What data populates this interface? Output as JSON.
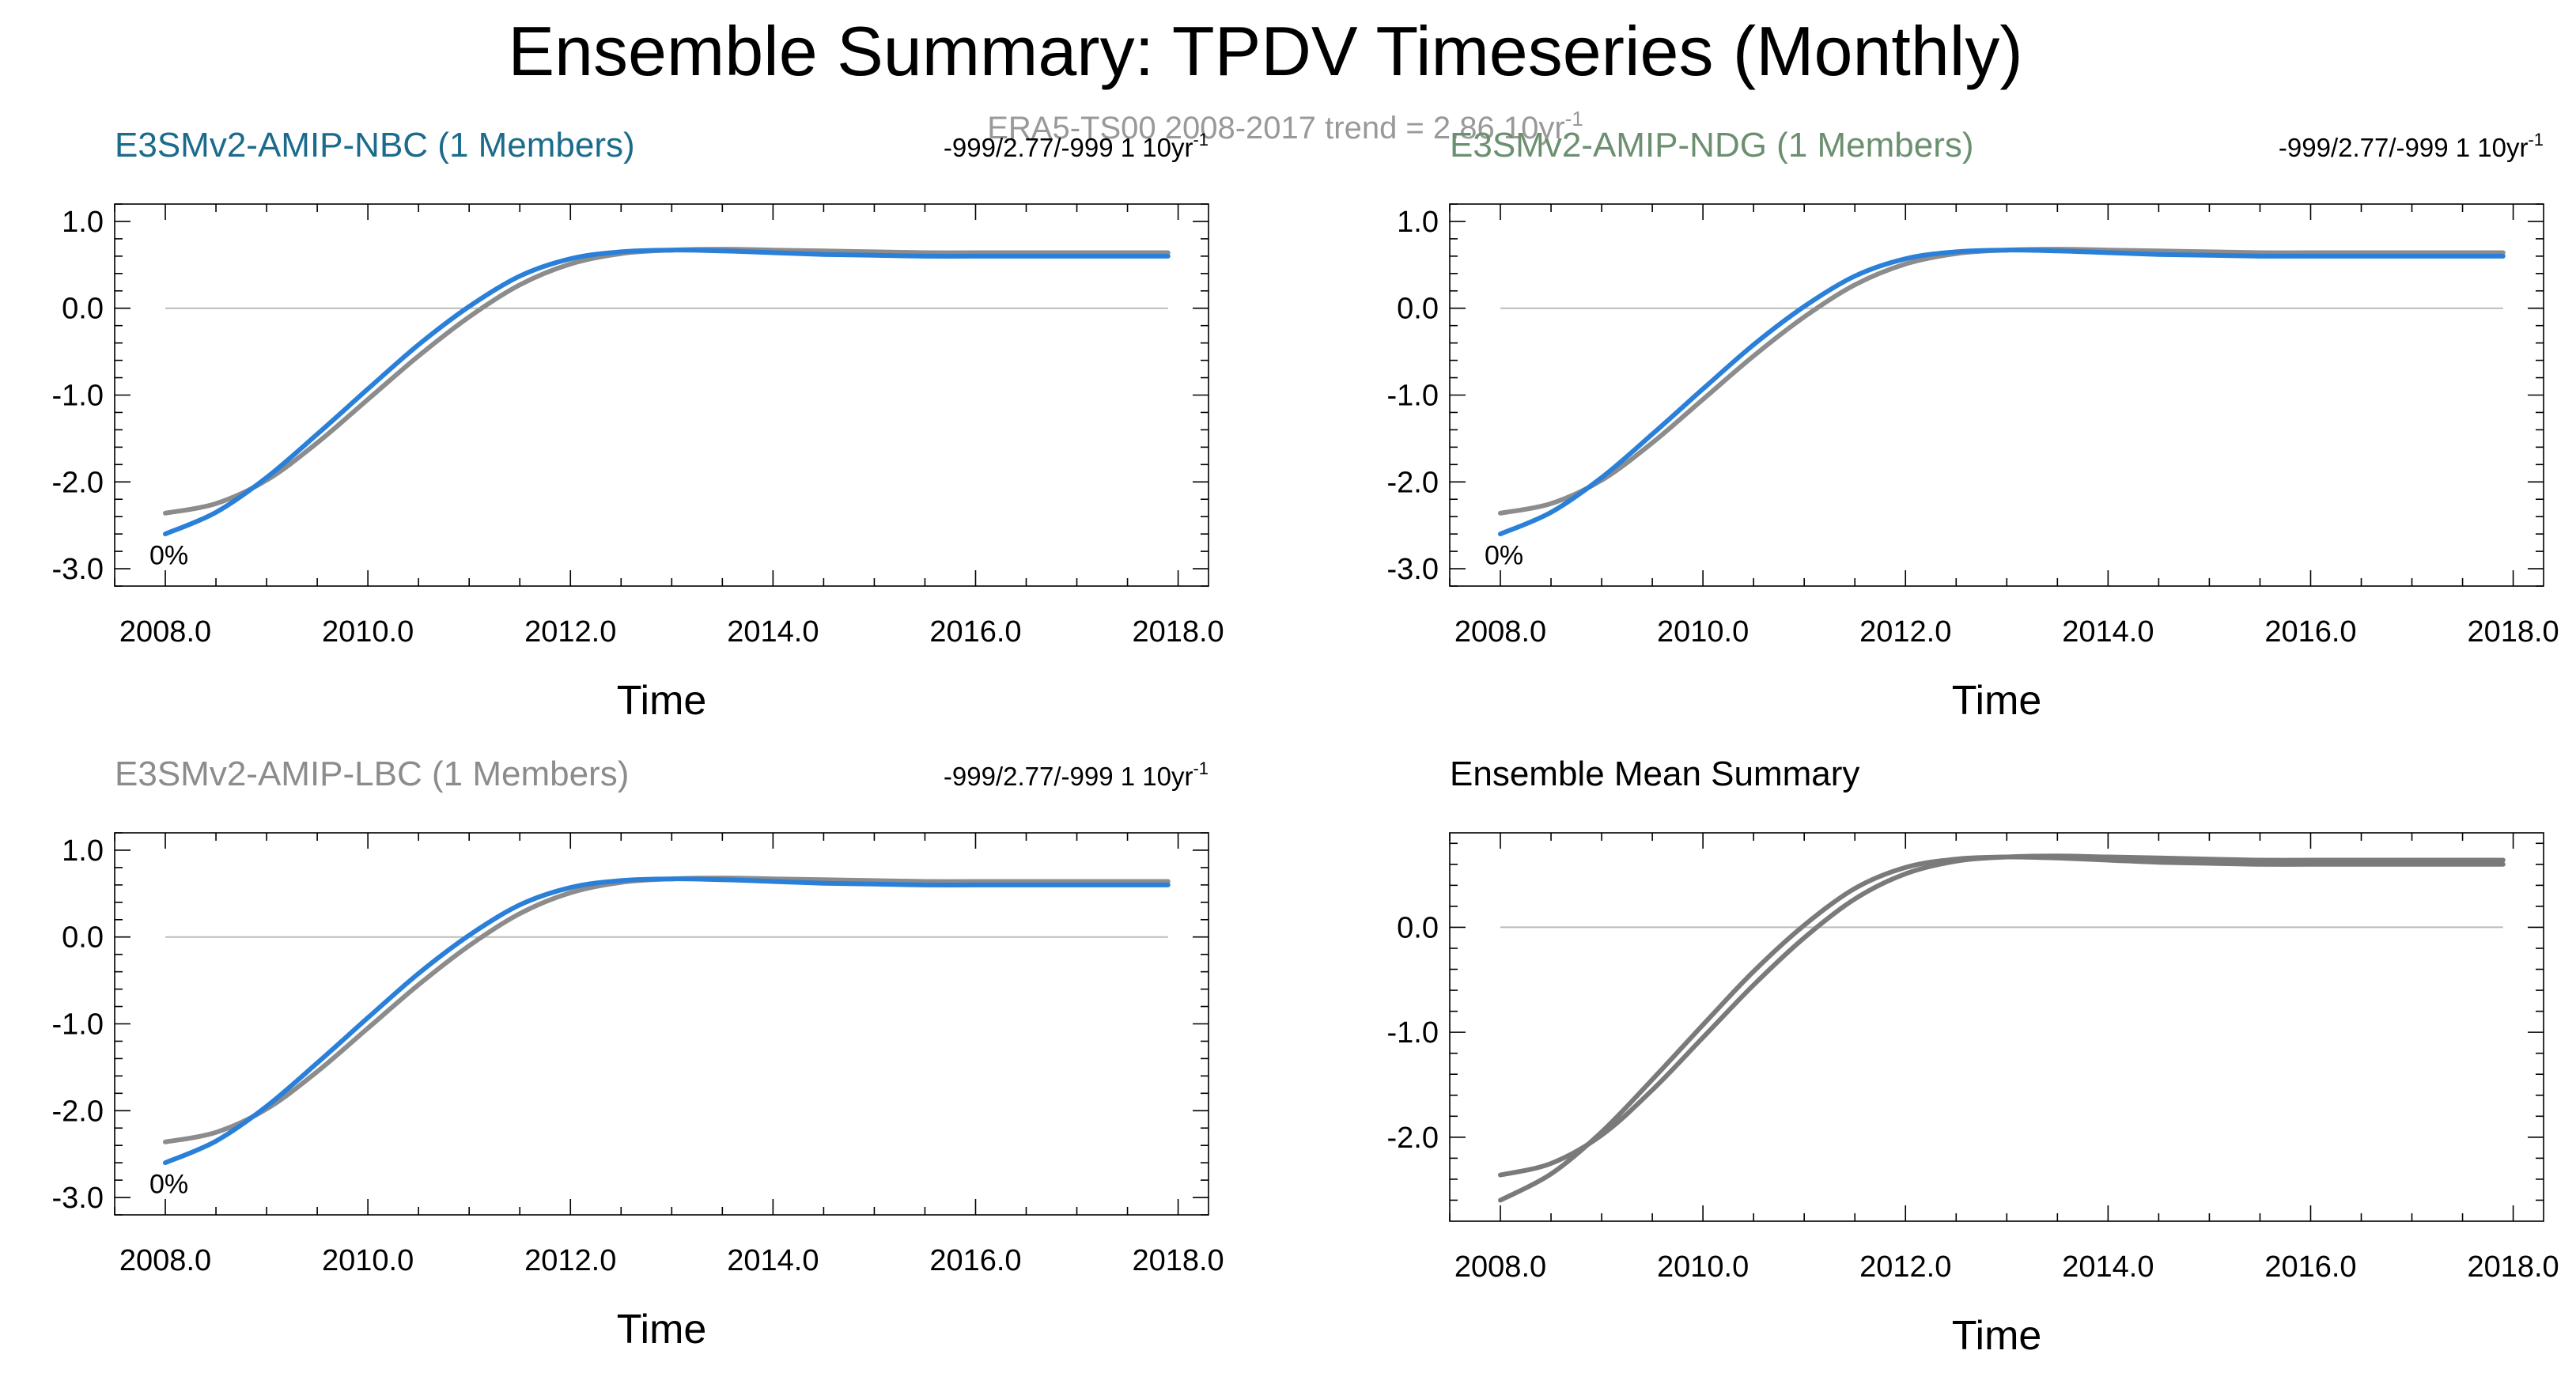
{
  "figure": {
    "title": "Ensemble Summary: TPDV Timeseries (Monthly)",
    "reference_label": "ERA5-TS00 2008-2017 trend = 2.86 10yr",
    "reference_label_superscript": "-1"
  },
  "colors": {
    "nbc_title": "#1b6b8c",
    "ndg_title": "#6b9070",
    "lbc_title": "#8c8c8c",
    "mean_title": "#000000",
    "observation_line": "#8c8c8c",
    "model_line": "#2a80d8",
    "ensemble_line": "#7a7a7a",
    "reference_label": "#999999"
  },
  "chart_data": [
    {
      "type": "line",
      "title": "E3SMv2-AMIP-NBC (1 Members)",
      "title_color_key": "nbc_title",
      "stats": "-999/2.77/-999 1 10yr",
      "stats_superscript": "-1",
      "percent_label": "0%",
      "xlabel": "Time",
      "ylabel": "",
      "xlim": [
        2007.5,
        2018.3
      ],
      "ylim": [
        -3.2,
        1.2
      ],
      "xticks": [
        2008,
        2010,
        2012,
        2014,
        2016,
        2018
      ],
      "xtick_labels": [
        "2008.0",
        "2010.0",
        "2012.0",
        "2014.0",
        "2016.0",
        "2018.0"
      ],
      "yticks": [
        -3,
        -2,
        -1,
        0,
        1
      ],
      "ytick_labels": [
        "-3.0",
        "-2.0",
        "-1.0",
        "0.0",
        "1.0"
      ],
      "zero_line": true,
      "grid": false,
      "x": [
        2008.0,
        2008.5,
        2009.0,
        2009.5,
        2010.0,
        2010.5,
        2011.0,
        2011.5,
        2012.0,
        2012.5,
        2013.0,
        2013.5,
        2014.0,
        2014.5,
        2015.0,
        2015.5,
        2016.0,
        2016.5,
        2017.0,
        2017.5,
        2017.9
      ],
      "series": [
        {
          "color_key": "observation_line",
          "values": [
            -2.36,
            -2.25,
            -1.98,
            -1.55,
            -1.05,
            -0.55,
            -0.1,
            0.27,
            0.51,
            0.63,
            0.67,
            0.68,
            0.67,
            0.66,
            0.65,
            0.64,
            0.64,
            0.64,
            0.64,
            0.64,
            0.64
          ]
        },
        {
          "color_key": "model_line",
          "values": [
            -2.6,
            -2.35,
            -1.95,
            -1.45,
            -0.93,
            -0.42,
            0.02,
            0.37,
            0.57,
            0.65,
            0.67,
            0.66,
            0.64,
            0.62,
            0.61,
            0.6,
            0.6,
            0.6,
            0.6,
            0.6,
            0.6
          ]
        }
      ]
    },
    {
      "type": "line",
      "title": "E3SMv2-AMIP-NDG (1 Members)",
      "title_color_key": "ndg_title",
      "stats": "-999/2.77/-999 1 10yr",
      "stats_superscript": "-1",
      "percent_label": "0%",
      "xlabel": "Time",
      "ylabel": "",
      "xlim": [
        2007.5,
        2018.3
      ],
      "ylim": [
        -3.2,
        1.2
      ],
      "xticks": [
        2008,
        2010,
        2012,
        2014,
        2016,
        2018
      ],
      "xtick_labels": [
        "2008.0",
        "2010.0",
        "2012.0",
        "2014.0",
        "2016.0",
        "2018.0"
      ],
      "yticks": [
        -3,
        -2,
        -1,
        0,
        1
      ],
      "ytick_labels": [
        "-3.0",
        "-2.0",
        "-1.0",
        "0.0",
        "1.0"
      ],
      "zero_line": true,
      "grid": false,
      "x": [
        2008.0,
        2008.5,
        2009.0,
        2009.5,
        2010.0,
        2010.5,
        2011.0,
        2011.5,
        2012.0,
        2012.5,
        2013.0,
        2013.5,
        2014.0,
        2014.5,
        2015.0,
        2015.5,
        2016.0,
        2016.5,
        2017.0,
        2017.5,
        2017.9
      ],
      "series": [
        {
          "color_key": "observation_line",
          "values": [
            -2.36,
            -2.25,
            -1.98,
            -1.55,
            -1.05,
            -0.55,
            -0.1,
            0.27,
            0.51,
            0.63,
            0.67,
            0.68,
            0.67,
            0.66,
            0.65,
            0.64,
            0.64,
            0.64,
            0.64,
            0.64,
            0.64
          ]
        },
        {
          "color_key": "model_line",
          "values": [
            -2.6,
            -2.35,
            -1.95,
            -1.45,
            -0.93,
            -0.42,
            0.02,
            0.37,
            0.57,
            0.65,
            0.67,
            0.66,
            0.64,
            0.62,
            0.61,
            0.6,
            0.6,
            0.6,
            0.6,
            0.6,
            0.6
          ]
        }
      ]
    },
    {
      "type": "line",
      "title": "E3SMv2-AMIP-LBC (1 Members)",
      "title_color_key": "lbc_title",
      "stats": "-999/2.77/-999 1 10yr",
      "stats_superscript": "-1",
      "percent_label": "0%",
      "xlabel": "Time",
      "ylabel": "",
      "xlim": [
        2007.5,
        2018.3
      ],
      "ylim": [
        -3.2,
        1.2
      ],
      "xticks": [
        2008,
        2010,
        2012,
        2014,
        2016,
        2018
      ],
      "xtick_labels": [
        "2008.0",
        "2010.0",
        "2012.0",
        "2014.0",
        "2016.0",
        "2018.0"
      ],
      "yticks": [
        -3,
        -2,
        -1,
        0,
        1
      ],
      "ytick_labels": [
        "-3.0",
        "-2.0",
        "-1.0",
        "0.0",
        "1.0"
      ],
      "zero_line": true,
      "grid": false,
      "x": [
        2008.0,
        2008.5,
        2009.0,
        2009.5,
        2010.0,
        2010.5,
        2011.0,
        2011.5,
        2012.0,
        2012.5,
        2013.0,
        2013.5,
        2014.0,
        2014.5,
        2015.0,
        2015.5,
        2016.0,
        2016.5,
        2017.0,
        2017.5,
        2017.9
      ],
      "series": [
        {
          "color_key": "observation_line",
          "values": [
            -2.36,
            -2.25,
            -1.98,
            -1.55,
            -1.05,
            -0.55,
            -0.1,
            0.27,
            0.51,
            0.63,
            0.67,
            0.68,
            0.67,
            0.66,
            0.65,
            0.64,
            0.64,
            0.64,
            0.64,
            0.64,
            0.64
          ]
        },
        {
          "color_key": "model_line",
          "values": [
            -2.6,
            -2.35,
            -1.95,
            -1.45,
            -0.93,
            -0.42,
            0.02,
            0.37,
            0.57,
            0.65,
            0.67,
            0.66,
            0.64,
            0.62,
            0.61,
            0.6,
            0.6,
            0.6,
            0.6,
            0.6,
            0.6
          ]
        }
      ]
    },
    {
      "type": "line",
      "title": "Ensemble Mean Summary",
      "title_color_key": "mean_title",
      "stats": "",
      "stats_superscript": "",
      "percent_label": "",
      "xlabel": "Time",
      "ylabel": "",
      "xlim": [
        2007.5,
        2018.3
      ],
      "ylim": [
        -2.8,
        0.9
      ],
      "xticks": [
        2008,
        2010,
        2012,
        2014,
        2016,
        2018
      ],
      "xtick_labels": [
        "2008.0",
        "2010.0",
        "2012.0",
        "2014.0",
        "2016.0",
        "2018.0"
      ],
      "yticks": [
        -2,
        -1,
        0
      ],
      "ytick_labels": [
        "-2.0",
        "-1.0",
        "0.0"
      ],
      "zero_line": true,
      "grid": false,
      "x": [
        2008.0,
        2008.5,
        2009.0,
        2009.5,
        2010.0,
        2010.5,
        2011.0,
        2011.5,
        2012.0,
        2012.5,
        2013.0,
        2013.5,
        2014.0,
        2014.5,
        2015.0,
        2015.5,
        2016.0,
        2016.5,
        2017.0,
        2017.5,
        2017.9
      ],
      "series": [
        {
          "color_key": "ensemble_line",
          "values": [
            -2.36,
            -2.25,
            -1.98,
            -1.55,
            -1.05,
            -0.55,
            -0.1,
            0.27,
            0.51,
            0.63,
            0.67,
            0.68,
            0.67,
            0.66,
            0.65,
            0.64,
            0.64,
            0.64,
            0.64,
            0.64,
            0.64
          ]
        },
        {
          "color_key": "ensemble_line",
          "values": [
            -2.6,
            -2.35,
            -1.95,
            -1.45,
            -0.93,
            -0.42,
            0.02,
            0.37,
            0.57,
            0.65,
            0.67,
            0.66,
            0.64,
            0.62,
            0.61,
            0.6,
            0.6,
            0.6,
            0.6,
            0.6,
            0.6
          ]
        }
      ]
    }
  ]
}
